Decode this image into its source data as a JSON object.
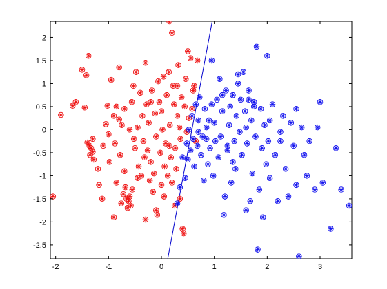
{
  "chart_data": {
    "type": "scatter",
    "title": "",
    "xlabel": "",
    "ylabel": "",
    "xlim": [
      -2.1,
      3.6
    ],
    "ylim": [
      -2.8,
      2.35
    ],
    "xticks": [
      -2,
      -1,
      0,
      1,
      2,
      3
    ],
    "xtick_labels": [
      "-2",
      "-1",
      "0",
      "1",
      "2",
      "3"
    ],
    "yticks": [
      2,
      1.5,
      1,
      0.5,
      0,
      -0.5,
      -1,
      -1.5,
      -2,
      -2.5
    ],
    "ytick_labels": [
      "2",
      "1.5",
      "1",
      "0.5",
      "0",
      "-0.5",
      "-1",
      "-1.5",
      "-2",
      "-2.5"
    ],
    "grid": false,
    "legend": "none",
    "boundary_line": {
      "color": "#0000cc",
      "points": [
        [
          0.12,
          -2.8
        ],
        [
          0.96,
          2.35
        ]
      ]
    },
    "series": [
      {
        "color": "#ee1111",
        "marker": "circled-asterisk",
        "points": [
          [
            -2.05,
            -1.45
          ],
          [
            -1.9,
            0.32
          ],
          [
            -1.68,
            0.52
          ],
          [
            -1.62,
            0.6
          ],
          [
            -1.5,
            1.3
          ],
          [
            -1.45,
            0.48
          ],
          [
            -1.42,
            1.18
          ],
          [
            -1.38,
            1.6
          ],
          [
            -1.4,
            -0.28
          ],
          [
            -1.36,
            -0.35
          ],
          [
            -1.33,
            -0.4
          ],
          [
            -1.3,
            -0.48
          ],
          [
            -1.35,
            -0.55
          ],
          [
            -1.3,
            -0.2
          ],
          [
            -1.28,
            -0.65
          ],
          [
            -1.2,
            -0.85
          ],
          [
            -1.18,
            -1.2
          ],
          [
            -1.12,
            -1.5
          ],
          [
            -1.05,
            0.12
          ],
          [
            -1.02,
            0.52
          ],
          [
            -1.0,
            -0.1
          ],
          [
            -0.98,
            -0.7
          ],
          [
            -0.95,
            1.08
          ],
          [
            -0.9,
            0.3
          ],
          [
            -0.88,
            -0.3
          ],
          [
            -0.85,
            0.5
          ],
          [
            -0.85,
            -1.15
          ],
          [
            -0.8,
            1.35
          ],
          [
            -0.8,
            0.22
          ],
          [
            -0.78,
            -0.55
          ],
          [
            -0.76,
            -1.6
          ],
          [
            -0.75,
            0.1
          ],
          [
            -0.72,
            -1.4
          ],
          [
            -0.7,
            -0.9
          ],
          [
            -0.68,
            -1.25
          ],
          [
            -0.66,
            -1.5
          ],
          [
            -0.64,
            -1.7
          ],
          [
            -0.62,
            -1.55
          ],
          [
            -0.6,
            -1.45
          ],
          [
            -0.58,
            -1.65
          ],
          [
            -0.56,
            0.6
          ],
          [
            -0.55,
            -1.3
          ],
          [
            -0.53,
            0.95
          ],
          [
            -0.52,
            -0.2
          ],
          [
            -0.5,
            -0.4
          ],
          [
            -0.48,
            1.25
          ],
          [
            -0.45,
            0.05
          ],
          [
            -0.43,
            -0.8
          ],
          [
            -0.4,
            0.8
          ],
          [
            -0.38,
            -1.0
          ],
          [
            -0.36,
            0.3
          ],
          [
            -0.34,
            -0.25
          ],
          [
            -0.32,
            -0.6
          ],
          [
            -0.3,
            1.45
          ],
          [
            -0.28,
            0.55
          ],
          [
            -0.26,
            -0.45
          ],
          [
            -0.24,
            0.15
          ],
          [
            -0.22,
            -1.1
          ],
          [
            -0.2,
            -0.7
          ],
          [
            -0.18,
            0.85
          ],
          [
            -0.16,
            -1.35
          ],
          [
            -0.14,
            -0.95
          ],
          [
            -0.12,
            0.35
          ],
          [
            -0.1,
            -0.15
          ],
          [
            -0.08,
            -1.85
          ],
          [
            -0.06,
            1.05
          ],
          [
            -0.04,
            0.6
          ],
          [
            -0.02,
            -0.5
          ],
          [
            0.0,
            -1.2
          ],
          [
            0.02,
            0.0
          ],
          [
            0.04,
            1.15
          ],
          [
            0.06,
            -0.8
          ],
          [
            0.08,
            -0.3
          ],
          [
            0.1,
            0.75
          ],
          [
            0.12,
            -1.0
          ],
          [
            0.14,
            1.25
          ],
          [
            0.15,
            2.35
          ],
          [
            0.16,
            0.1
          ],
          [
            0.18,
            -0.6
          ],
          [
            0.2,
            2.1
          ],
          [
            0.2,
            -1.15
          ],
          [
            0.22,
            0.95
          ],
          [
            0.24,
            0.55
          ],
          [
            0.26,
            -0.4
          ],
          [
            0.28,
            -0.85
          ],
          [
            0.3,
            0.3
          ],
          [
            0.32,
            1.4
          ],
          [
            0.34,
            0.05
          ],
          [
            0.36,
            -0.2
          ],
          [
            0.38,
            0.7
          ],
          [
            0.4,
            -2.15
          ],
          [
            0.42,
            -2.25
          ],
          [
            0.44,
            0.5
          ],
          [
            0.46,
            1.1
          ],
          [
            0.48,
            -0.05
          ],
          [
            0.5,
            1.7
          ],
          [
            0.52,
            0.25
          ],
          [
            0.55,
            1.55
          ],
          [
            0.58,
            0.45
          ],
          [
            0.6,
            0.85
          ],
          [
            0.62,
            0.95
          ],
          [
            0.65,
            -0.25
          ],
          [
            0.68,
            1.5
          ],
          [
            -0.1,
            -1.75
          ],
          [
            -0.3,
            -1.95
          ],
          [
            0.25,
            -1.65
          ],
          [
            0.05,
            -1.45
          ],
          [
            -0.9,
            -1.9
          ],
          [
            -0.2,
            0.6
          ],
          [
            0.35,
            -1.5
          ],
          [
            -0.6,
            0.0
          ],
          [
            -1.1,
            -0.35
          ],
          [
            -0.7,
            0.45
          ],
          [
            0.0,
            0.4
          ],
          [
            0.15,
            -0.35
          ],
          [
            -0.45,
            -1.05
          ],
          [
            0.3,
            0.95
          ]
        ]
      },
      {
        "color": "#1111ee",
        "marker": "circled-asterisk",
        "points": [
          [
            0.3,
            -1.6
          ],
          [
            0.35,
            -1.25
          ],
          [
            0.4,
            -0.6
          ],
          [
            0.45,
            -1.05
          ],
          [
            0.48,
            -0.3
          ],
          [
            0.5,
            -0.65
          ],
          [
            0.52,
            0.0
          ],
          [
            0.55,
            -0.45
          ],
          [
            0.58,
            0.3
          ],
          [
            0.6,
            -0.2
          ],
          [
            0.62,
            -0.8
          ],
          [
            0.65,
            0.55
          ],
          [
            0.68,
            -0.35
          ],
          [
            0.7,
            0.2
          ],
          [
            0.72,
            0.7
          ],
          [
            0.75,
            -0.55
          ],
          [
            0.78,
            -0.15
          ],
          [
            0.8,
            -1.1
          ],
          [
            0.82,
            0.45
          ],
          [
            0.85,
            0.05
          ],
          [
            0.88,
            -0.75
          ],
          [
            0.9,
            0.2
          ],
          [
            0.92,
            -0.4
          ],
          [
            0.95,
            0.55
          ],
          [
            0.98,
            -1.0
          ],
          [
            1.0,
            0.15
          ],
          [
            1.02,
            -0.25
          ],
          [
            1.05,
            0.65
          ],
          [
            1.08,
            -0.6
          ],
          [
            1.1,
            1.1
          ],
          [
            1.12,
            -0.15
          ],
          [
            1.15,
            0.4
          ],
          [
            1.18,
            -1.85
          ],
          [
            1.2,
            -1.45
          ],
          [
            1.22,
            0.85
          ],
          [
            1.25,
            -0.45
          ],
          [
            1.28,
            0.1
          ],
          [
            1.3,
            0.5
          ],
          [
            1.32,
            -1.15
          ],
          [
            1.35,
            0.75
          ],
          [
            1.38,
            -0.25
          ],
          [
            1.4,
            -0.85
          ],
          [
            1.42,
            0.3
          ],
          [
            1.45,
            1.0
          ],
          [
            1.48,
            -0.05
          ],
          [
            1.5,
            0.65
          ],
          [
            1.52,
            -0.55
          ],
          [
            1.55,
            1.25
          ],
          [
            1.58,
            0.4
          ],
          [
            1.6,
            -1.75
          ],
          [
            1.62,
            -0.3
          ],
          [
            1.65,
            0.85
          ],
          [
            1.68,
            -1.55
          ],
          [
            1.7,
            0.2
          ],
          [
            1.72,
            -0.95
          ],
          [
            1.75,
            0.5
          ],
          [
            1.78,
            -0.15
          ],
          [
            1.8,
            1.8
          ],
          [
            1.82,
            -2.6
          ],
          [
            1.85,
            -1.3
          ],
          [
            1.88,
            0.45
          ],
          [
            1.9,
            -0.4
          ],
          [
            1.92,
            -1.9
          ],
          [
            1.95,
            0.1
          ],
          [
            1.98,
            -0.75
          ],
          [
            2.0,
            1.6
          ],
          [
            2.02,
            -0.25
          ],
          [
            2.05,
            -1.05
          ],
          [
            2.1,
            0.55
          ],
          [
            2.15,
            -0.55
          ],
          [
            2.2,
            -1.55
          ],
          [
            2.25,
            -0.05
          ],
          [
            2.3,
            0.3
          ],
          [
            2.35,
            -0.85
          ],
          [
            2.4,
            -1.45
          ],
          [
            2.45,
            0.15
          ],
          [
            2.5,
            -0.35
          ],
          [
            2.55,
            -1.2
          ],
          [
            2.6,
            -2.75
          ],
          [
            2.65,
            0.05
          ],
          [
            2.7,
            -0.55
          ],
          [
            2.75,
            -1.0
          ],
          [
            2.8,
            -0.25
          ],
          [
            2.9,
            -1.3
          ],
          [
            2.95,
            0.05
          ],
          [
            3.0,
            0.6
          ],
          [
            3.05,
            -1.15
          ],
          [
            3.2,
            -2.15
          ],
          [
            3.3,
            -0.4
          ],
          [
            3.4,
            -1.3
          ],
          [
            3.55,
            -1.65
          ],
          [
            1.45,
            1.2
          ],
          [
            1.15,
            0.75
          ],
          [
            0.95,
            1.5
          ],
          [
            1.65,
            0.65
          ],
          [
            2.05,
            0.2
          ],
          [
            1.35,
            -0.7
          ],
          [
            0.7,
            -0.05
          ],
          [
            1.75,
            0.6
          ],
          [
            2.55,
            0.45
          ],
          [
            1.25,
            -0.35
          ],
          [
            0.85,
            -0.2
          ],
          [
            1.6,
            0.05
          ],
          [
            2.25,
            -0.25
          ]
        ]
      }
    ]
  }
}
